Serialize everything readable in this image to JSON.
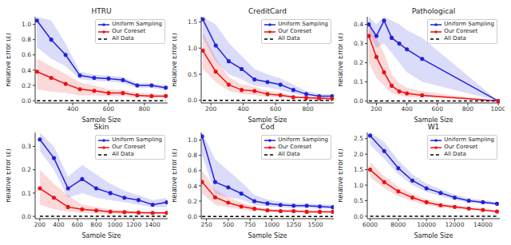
{
  "chart_data": [
    {
      "type": "line",
      "title": "HTRU",
      "x_label": "Sample Size",
      "y_label": "Relative Error (ε)",
      "grid": false,
      "legend": "upper right",
      "x": [
        200,
        280,
        360,
        440,
        520,
        600,
        680,
        760,
        840,
        920
      ],
      "xlim": [
        190,
        930
      ],
      "xticks": [
        400,
        600,
        800
      ],
      "ylim": [
        -0.03,
        1.1
      ],
      "yticks": [
        {
          "value": 0,
          "label": "0.0"
        },
        {
          "value": 0.2,
          "label": "0.2"
        },
        {
          "value": 0.4,
          "label": "0.4"
        },
        {
          "value": 0.6,
          "label": "0.6"
        },
        {
          "value": 0.8,
          "label": "0.8"
        },
        {
          "value": 1.0,
          "label": "1.0"
        }
      ],
      "series": [
        {
          "name": "Uniform Sampling",
          "color": "#2222dd",
          "marker": "o",
          "line_style": "solid",
          "values": [
            1.05,
            0.8,
            0.6,
            0.33,
            0.3,
            0.29,
            0.27,
            0.2,
            0.2,
            0.17
          ],
          "lower": [
            0.7,
            0.55,
            0.45,
            0.28,
            0.26,
            0.25,
            0.23,
            0.17,
            0.17,
            0.14
          ],
          "upper": [
            1.1,
            1.05,
            0.75,
            0.38,
            0.34,
            0.33,
            0.31,
            0.23,
            0.23,
            0.2
          ]
        },
        {
          "name": "Our Coreset",
          "color": "#ee1111",
          "marker": "o",
          "line_style": "solid",
          "values": [
            0.38,
            0.3,
            0.22,
            0.15,
            0.13,
            0.1,
            0.1,
            0.07,
            0.06,
            0.06
          ],
          "lower": [
            0.15,
            0.12,
            0.1,
            0.07,
            0.07,
            0.06,
            0.06,
            0.04,
            0.04,
            0.04
          ],
          "upper": [
            0.55,
            0.45,
            0.35,
            0.24,
            0.2,
            0.15,
            0.14,
            0.1,
            0.09,
            0.08
          ]
        },
        {
          "name": "All Data",
          "color": "#000000",
          "line_style": "dashed",
          "values": [
            0,
            0,
            0,
            0,
            0,
            0,
            0,
            0,
            0,
            0
          ]
        }
      ]
    },
    {
      "type": "line",
      "title": "CreditCard",
      "x_label": "Sample Size",
      "y_label": "Relative Error (ε)",
      "grid": false,
      "legend": "upper right",
      "x": [
        150,
        230,
        310,
        390,
        470,
        550,
        630,
        710,
        790,
        870,
        950
      ],
      "xlim": [
        140,
        960
      ],
      "xticks": [
        200,
        400,
        600,
        800
      ],
      "ylim": [
        -0.05,
        1.6
      ],
      "yticks": [
        {
          "value": 0,
          "label": "0.0"
        },
        {
          "value": 0.5,
          "label": "0.5"
        },
        {
          "value": 1.0,
          "label": "1.0"
        },
        {
          "value": 1.5,
          "label": "1.5"
        }
      ],
      "series": [
        {
          "name": "Uniform Sampling",
          "color": "#2222dd",
          "marker": "o",
          "line_style": "solid",
          "values": [
            1.55,
            1.05,
            0.75,
            0.6,
            0.4,
            0.35,
            0.3,
            0.2,
            0.12,
            0.08,
            0.08
          ],
          "lower": [
            1.2,
            0.75,
            0.5,
            0.4,
            0.28,
            0.25,
            0.2,
            0.13,
            0.08,
            0.05,
            0.05
          ],
          "upper": [
            1.6,
            1.45,
            1.1,
            0.85,
            0.6,
            0.5,
            0.42,
            0.3,
            0.18,
            0.12,
            0.11
          ]
        },
        {
          "name": "Our Coreset",
          "color": "#ee1111",
          "marker": "o",
          "line_style": "solid",
          "values": [
            0.95,
            0.55,
            0.3,
            0.2,
            0.18,
            0.12,
            0.1,
            0.06,
            0.05,
            0.04,
            0.03
          ],
          "lower": [
            0.6,
            0.35,
            0.18,
            0.12,
            0.1,
            0.07,
            0.06,
            0.04,
            0.03,
            0.02,
            0.02
          ],
          "upper": [
            1.3,
            0.8,
            0.45,
            0.3,
            0.26,
            0.18,
            0.15,
            0.09,
            0.07,
            0.06,
            0.05
          ]
        },
        {
          "name": "All Data",
          "color": "#000000",
          "line_style": "dashed",
          "values": [
            0,
            0,
            0,
            0,
            0,
            0,
            0,
            0,
            0,
            0,
            0
          ]
        }
      ]
    },
    {
      "type": "line",
      "title": "Pathological",
      "x_label": "Sample Size",
      "y_label": "Relative Error (ε)",
      "grid": false,
      "legend": "upper right",
      "x": [
        150,
        200,
        250,
        300,
        350,
        400,
        500,
        1000
      ],
      "xlim": [
        140,
        1010
      ],
      "xticks": [
        200,
        400,
        600,
        800,
        1000
      ],
      "ylim": [
        -0.01,
        0.44
      ],
      "yticks": [
        {
          "value": 0,
          "label": "0.0"
        },
        {
          "value": 0.1,
          "label": "0.1"
        },
        {
          "value": 0.2,
          "label": "0.2"
        },
        {
          "value": 0.3,
          "label": "0.3"
        },
        {
          "value": 0.4,
          "label": "0.4"
        }
      ],
      "series": [
        {
          "name": "Uniform Sampling",
          "color": "#2222dd",
          "marker": "o",
          "line_style": "solid",
          "values": [
            0.4,
            0.34,
            0.42,
            0.33,
            0.3,
            0.27,
            0.22,
            0.0
          ],
          "lower": [
            0.35,
            0.28,
            0.3,
            0.25,
            0.2,
            0.15,
            0.1,
            0.0
          ],
          "upper": [
            0.44,
            0.4,
            0.44,
            0.42,
            0.4,
            0.37,
            0.33,
            0.0
          ]
        },
        {
          "name": "Our Coreset",
          "color": "#ee1111",
          "marker": "o",
          "line_style": "solid",
          "values": [
            0.34,
            0.23,
            0.15,
            0.08,
            0.05,
            0.04,
            0.03,
            0.0
          ],
          "lower": [
            0.2,
            0.12,
            0.08,
            0.04,
            0.03,
            0.02,
            0.02,
            0.0
          ],
          "upper": [
            0.42,
            0.33,
            0.25,
            0.14,
            0.09,
            0.07,
            0.05,
            0.0
          ]
        },
        {
          "name": "All Data",
          "color": "#000000",
          "line_style": "dashed",
          "values": [
            0,
            0,
            0,
            0,
            0,
            0,
            0,
            0
          ]
        }
      ]
    },
    {
      "type": "line",
      "title": "Skin",
      "x_label": "Sample Size",
      "y_label": "Relative Error (ε)",
      "grid": false,
      "legend": "upper right",
      "x": [
        200,
        350,
        500,
        650,
        800,
        950,
        1100,
        1250,
        1400,
        1550
      ],
      "xlim": [
        150,
        1560
      ],
      "xticks": [
        200,
        400,
        600,
        800,
        1000,
        1200,
        1400
      ],
      "ylim": [
        -0.01,
        0.36
      ],
      "yticks": [
        {
          "value": 0,
          "label": "0.0"
        },
        {
          "value": 0.1,
          "label": "0.1"
        },
        {
          "value": 0.2,
          "label": "0.2"
        },
        {
          "value": 0.3,
          "label": "0.3"
        }
      ],
      "series": [
        {
          "name": "Uniform Sampling",
          "color": "#2222dd",
          "marker": "o",
          "line_style": "solid",
          "values": [
            0.33,
            0.25,
            0.12,
            0.16,
            0.12,
            0.1,
            0.08,
            0.07,
            0.05,
            0.06
          ],
          "lower": [
            0.28,
            0.2,
            0.08,
            0.1,
            0.08,
            0.07,
            0.06,
            0.05,
            0.04,
            0.04
          ],
          "upper": [
            0.36,
            0.3,
            0.17,
            0.22,
            0.18,
            0.14,
            0.11,
            0.09,
            0.07,
            0.08
          ]
        },
        {
          "name": "Our Coreset",
          "color": "#ee1111",
          "marker": "o",
          "line_style": "solid",
          "values": [
            0.12,
            0.08,
            0.04,
            0.03,
            0.025,
            0.02,
            0.018,
            0.016,
            0.015,
            0.015
          ],
          "lower": [
            0.05,
            0.03,
            0.02,
            0.015,
            0.012,
            0.01,
            0.01,
            0.01,
            0.01,
            0.01
          ],
          "upper": [
            0.2,
            0.14,
            0.09,
            0.05,
            0.04,
            0.03,
            0.025,
            0.022,
            0.02,
            0.02
          ]
        },
        {
          "name": "All Data",
          "color": "#000000",
          "line_style": "dashed",
          "values": [
            0,
            0,
            0,
            0,
            0,
            0,
            0,
            0,
            0,
            0
          ]
        }
      ]
    },
    {
      "type": "line",
      "title": "Cod",
      "x_label": "Sample Size",
      "y_label": "Relative Error (ε)",
      "grid": false,
      "legend": "upper right",
      "x": [
        200,
        350,
        500,
        650,
        800,
        950,
        1100,
        1250,
        1400,
        1550,
        1700
      ],
      "xlim": [
        190,
        1710
      ],
      "xticks": [
        250,
        500,
        750,
        1000,
        1250,
        1500
      ],
      "ylim": [
        -0.03,
        1.1
      ],
      "yticks": [
        {
          "value": 0,
          "label": "0.0"
        },
        {
          "value": 0.2,
          "label": "0.2"
        },
        {
          "value": 0.4,
          "label": "0.4"
        },
        {
          "value": 0.6,
          "label": "0.6"
        },
        {
          "value": 0.8,
          "label": "0.8"
        },
        {
          "value": 1.0,
          "label": "1.0"
        }
      ],
      "series": [
        {
          "name": "Uniform Sampling",
          "color": "#2222dd",
          "marker": "o",
          "line_style": "solid",
          "values": [
            1.05,
            0.45,
            0.38,
            0.3,
            0.2,
            0.17,
            0.15,
            0.14,
            0.14,
            0.13,
            0.12
          ],
          "lower": [
            0.8,
            0.3,
            0.25,
            0.22,
            0.15,
            0.13,
            0.12,
            0.11,
            0.11,
            0.1,
            0.1
          ],
          "upper": [
            1.1,
            0.75,
            0.6,
            0.45,
            0.28,
            0.22,
            0.19,
            0.17,
            0.17,
            0.16,
            0.15
          ]
        },
        {
          "name": "Our Coreset",
          "color": "#ee1111",
          "marker": "o",
          "line_style": "solid",
          "values": [
            0.45,
            0.25,
            0.18,
            0.13,
            0.1,
            0.08,
            0.07,
            0.07,
            0.06,
            0.06,
            0.06
          ],
          "lower": [
            0.3,
            0.15,
            0.12,
            0.09,
            0.07,
            0.06,
            0.05,
            0.05,
            0.05,
            0.05,
            0.05
          ],
          "upper": [
            0.6,
            0.35,
            0.25,
            0.18,
            0.13,
            0.1,
            0.09,
            0.09,
            0.08,
            0.08,
            0.07
          ]
        },
        {
          "name": "All Data",
          "color": "#000000",
          "line_style": "dashed",
          "values": [
            0,
            0,
            0,
            0,
            0,
            0,
            0,
            0,
            0,
            0,
            0
          ]
        }
      ]
    },
    {
      "type": "line",
      "title": "W1",
      "x_label": "Sample Size",
      "y_label": "Relative Error (ε)",
      "grid": false,
      "legend": "upper right",
      "x": [
        6000,
        7000,
        8000,
        9000,
        10000,
        11000,
        12000,
        13000,
        14000,
        15000
      ],
      "xlim": [
        5800,
        15200
      ],
      "xticks": [
        6000,
        8000,
        10000,
        12000,
        14000
      ],
      "ylim": [
        -0.08,
        2.7
      ],
      "yticks": [
        {
          "value": 0,
          "label": "0.0"
        },
        {
          "value": 0.5,
          "label": "0.5"
        },
        {
          "value": 1.0,
          "label": "1.0"
        },
        {
          "value": 1.5,
          "label": "1.5"
        },
        {
          "value": 2.0,
          "label": "2.0"
        },
        {
          "value": 2.5,
          "label": "2.5"
        }
      ],
      "series": [
        {
          "name": "Uniform Sampling",
          "color": "#2222dd",
          "marker": "o",
          "line_style": "solid",
          "values": [
            2.6,
            2.1,
            1.55,
            1.15,
            0.9,
            0.75,
            0.6,
            0.5,
            0.45,
            0.4
          ],
          "lower": [
            2.3,
            1.85,
            1.35,
            1.0,
            0.78,
            0.65,
            0.52,
            0.44,
            0.39,
            0.35
          ],
          "upper": [
            2.7,
            2.4,
            1.8,
            1.35,
            1.05,
            0.87,
            0.7,
            0.58,
            0.52,
            0.46
          ]
        },
        {
          "name": "Our Coreset",
          "color": "#ee1111",
          "marker": "o",
          "line_style": "solid",
          "values": [
            1.5,
            1.1,
            0.8,
            0.6,
            0.45,
            0.35,
            0.3,
            0.25,
            0.2,
            0.15
          ],
          "lower": [
            1.25,
            0.9,
            0.65,
            0.48,
            0.36,
            0.28,
            0.24,
            0.2,
            0.16,
            0.12
          ],
          "upper": [
            1.75,
            1.3,
            0.95,
            0.72,
            0.55,
            0.43,
            0.36,
            0.3,
            0.25,
            0.19
          ]
        },
        {
          "name": "All Data",
          "color": "#000000",
          "line_style": "dashed",
          "values": [
            0,
            0,
            0,
            0,
            0,
            0,
            0,
            0,
            0,
            0
          ]
        }
      ]
    }
  ]
}
